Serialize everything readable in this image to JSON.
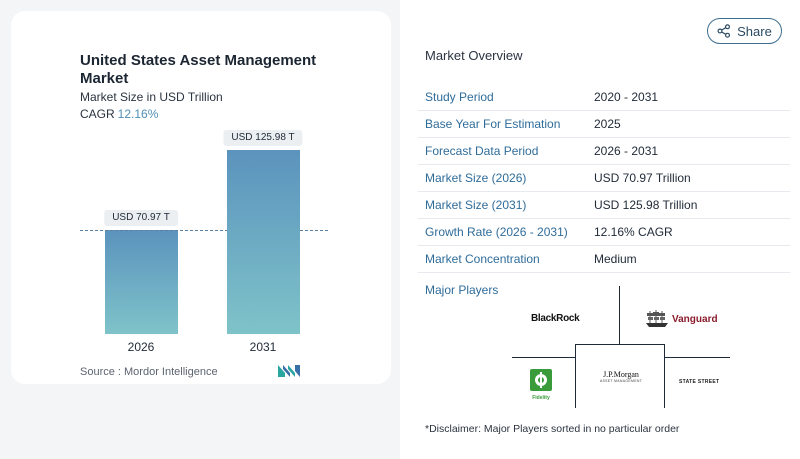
{
  "chart": {
    "title": "United States Asset Management Market",
    "subtitle": "Market Size in USD Trillion",
    "cagr_label": "CAGR",
    "cagr_value": "12.16%",
    "source": "Source :  Mordor Intelligence"
  },
  "chart_data": {
    "type": "bar",
    "categories": [
      "2026",
      "2031"
    ],
    "values": [
      70.97,
      125.98
    ],
    "data_labels": [
      "USD 70.97 T",
      "USD 125.98 T"
    ],
    "title": "United States Asset Management Market",
    "subtitle": "Market Size in USD Trillion",
    "xlabel": "",
    "ylabel": "",
    "ylim": [
      0,
      125.98
    ],
    "grid": false,
    "colors": {
      "top": "#5b93bd",
      "bottom": "#7fc3c9",
      "dash": "#5a7fa0"
    }
  },
  "share": {
    "label": "Share"
  },
  "overview": {
    "title": "Market Overview",
    "rows": [
      {
        "key": "Study Period",
        "value": "2020 - 2031"
      },
      {
        "key": "Base Year For Estimation",
        "value": "2025"
      },
      {
        "key": "Forecast Data Period",
        "value": "2026 - 2031"
      },
      {
        "key": "Market Size (2026)",
        "value": "USD 70.97 Trillion"
      },
      {
        "key": "Market Size (2031)",
        "value": "USD 125.98 Trillion"
      },
      {
        "key": "Growth Rate (2026 - 2031)",
        "value": "12.16% CAGR"
      },
      {
        "key": "Market Concentration",
        "value": "Medium"
      }
    ]
  },
  "players": {
    "title": "Major Players",
    "logos": {
      "blackrock": "BlackRock",
      "vanguard": "Vanguard",
      "jpmorgan": "J.P.Morgan",
      "jpmorgan_sub": "ASSET MANAGEMENT",
      "fidelity": "Fidelity",
      "statestreet": "STATE STREET"
    }
  },
  "disclaimer": "*Disclaimer: Major Players sorted in no particular order",
  "colors": {
    "accent": "#2f6c9a",
    "key_text": "#2f6c9a",
    "cagr": "#4f8fb8"
  }
}
